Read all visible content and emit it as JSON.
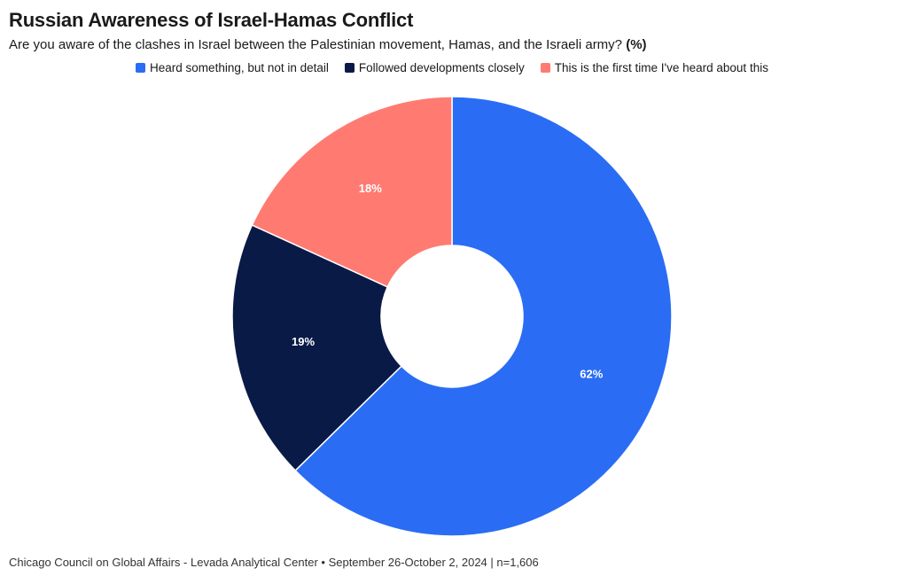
{
  "title": "Russian Awareness of Israel-Hamas Conflict",
  "subtitle_plain": "Are you aware of the clashes in Israel between the Palestinian movement, Hamas, and the Israeli army? ",
  "subtitle_pct": "(%)",
  "footer": "Chicago Council on Global Affairs - Levada Analytical Center • September 26-October 2, 2024 | n=1,606",
  "chart": {
    "type": "donut",
    "background_color": "#ffffff",
    "outer_radius": 248,
    "inner_radius": 80,
    "start_angle_deg": 0,
    "slice_sep_color": "#ffffff",
    "slice_sep_width": 1.5,
    "label_fontsize": 13,
    "label_fontweight": 700,
    "label_color": "#ffffff",
    "series": [
      {
        "key": "heard",
        "label": "Heard something, but not in detail",
        "value": 62,
        "display": "62%",
        "color": "#2a6df4"
      },
      {
        "key": "followed",
        "label": "Followed developments closely",
        "value": 19,
        "display": "19%",
        "color": "#0a1a46"
      },
      {
        "key": "firsttime",
        "label": "This is the first time I've heard about this",
        "value": 18,
        "display": "18%",
        "color": "#ff7b72"
      }
    ]
  },
  "legend": {
    "fontsize": 13.5,
    "swatch_radius": 2
  }
}
